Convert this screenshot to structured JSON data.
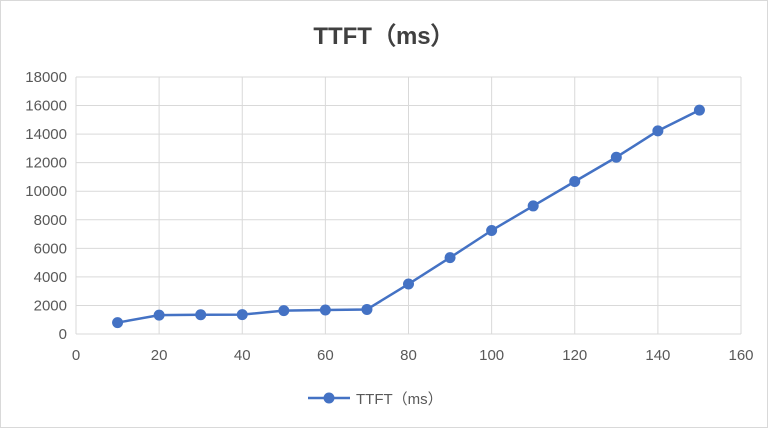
{
  "chart_data": {
    "type": "scatter",
    "title": "TTFT（ms）",
    "xlabel": "",
    "ylabel": "",
    "xlim": [
      0,
      160
    ],
    "ylim": [
      0,
      18000
    ],
    "x_ticks": [
      0,
      20,
      40,
      60,
      80,
      100,
      120,
      140,
      160
    ],
    "y_ticks": [
      0,
      2000,
      4000,
      6000,
      8000,
      10000,
      12000,
      14000,
      16000,
      18000
    ],
    "grid": true,
    "legend_position": "bottom",
    "series": [
      {
        "name": "TTFT（ms）",
        "color": "#4472c4",
        "x": [
          10,
          20,
          30,
          40,
          50,
          60,
          70,
          80,
          90,
          100,
          110,
          120,
          130,
          140,
          150
        ],
        "y": [
          800,
          1320,
          1350,
          1360,
          1640,
          1680,
          1720,
          3500,
          5350,
          7250,
          8970,
          10680,
          12380,
          14230,
          15680
        ]
      }
    ]
  }
}
